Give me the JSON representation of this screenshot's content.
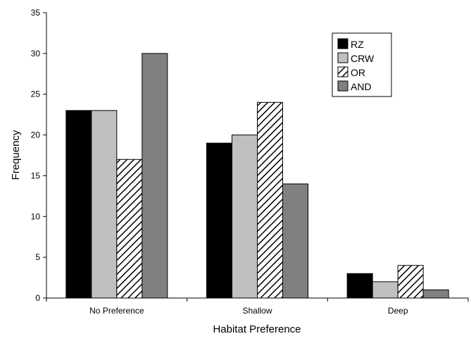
{
  "chart_data": {
    "type": "bar",
    "title": "",
    "xlabel": "Habitat Preference",
    "ylabel": "Frequency",
    "categories": [
      "No Preference",
      "Shallow",
      "Deep"
    ],
    "ylim": [
      0,
      35
    ],
    "yticks": [
      0,
      5,
      10,
      15,
      20,
      25,
      30,
      35
    ],
    "grid": false,
    "legend_position": "top-right",
    "series": [
      {
        "name": "RZ",
        "values": [
          23,
          19,
          3
        ],
        "color": "#000000",
        "pattern": "solid"
      },
      {
        "name": "CRW",
        "values": [
          23,
          20,
          2
        ],
        "color": "#c0c0c0",
        "pattern": "solid"
      },
      {
        "name": "OR",
        "values": [
          17,
          24,
          4
        ],
        "color": "#ffffff",
        "pattern": "diagonal-hatch"
      },
      {
        "name": "AND",
        "values": [
          30,
          14,
          1
        ],
        "color": "#808080",
        "pattern": "solid"
      }
    ]
  }
}
